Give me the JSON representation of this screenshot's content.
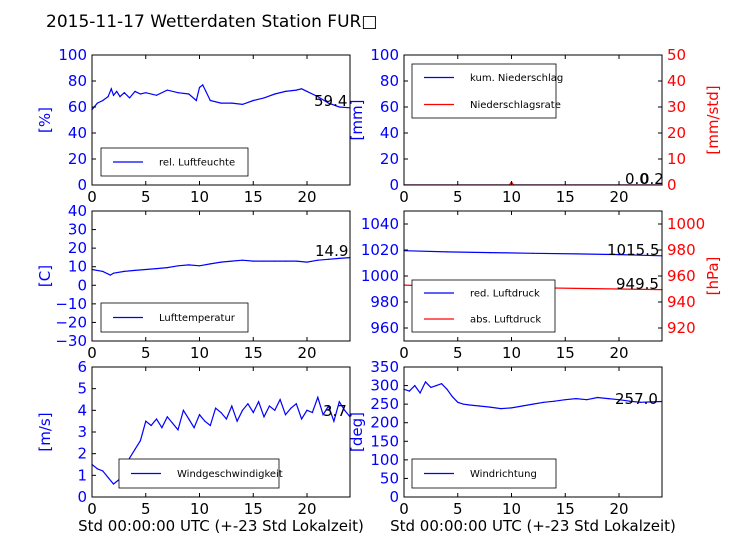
{
  "title": "2015-11-17 Wetterdaten Station FUR□",
  "xlabel": "Std 00:00:00 UTC (+-23 Std Lokalzeit)",
  "colors": {
    "left_axis": "#0000ff",
    "right_axis": "#ff0000",
    "series_blue": "#0000ff",
    "series_red": "#ff0000",
    "wind_faded": "#8080ff"
  },
  "chart_data": [
    {
      "type": "line",
      "id": "humidity",
      "ylabel": "[%]",
      "xlim": [
        0,
        24
      ],
      "ylim": [
        0,
        100
      ],
      "xticks": [
        0,
        5,
        10,
        15,
        20
      ],
      "yticks": [
        0,
        20,
        40,
        60,
        80,
        100
      ],
      "legend": "bottom-left",
      "annotation": "59.4",
      "series": [
        {
          "name": "rel. Luftfeuchte",
          "color": "#0000ff",
          "x": [
            0,
            0.5,
            1,
            1.5,
            1.8,
            2,
            2.3,
            2.6,
            3,
            3.5,
            4,
            4.5,
            5,
            6,
            7,
            8,
            9,
            9.7,
            10,
            10.3,
            10.6,
            11,
            12,
            13,
            14,
            15,
            16,
            17,
            18,
            19,
            19.5,
            20,
            21,
            22,
            23,
            24
          ],
          "y": [
            58,
            63,
            65,
            68,
            74,
            69,
            72,
            68,
            71,
            67,
            72,
            70,
            71,
            69,
            73,
            71,
            70,
            65,
            75,
            77,
            72,
            65,
            63,
            63,
            62,
            65,
            67,
            70,
            72,
            73,
            74,
            72,
            68,
            63,
            60,
            59.4
          ]
        }
      ]
    },
    {
      "type": "line",
      "id": "precipitation",
      "ylabel": "[mm]",
      "ylabel_right": "[mm/std]",
      "xlim": [
        0,
        24
      ],
      "ylim": [
        0,
        100
      ],
      "ylim_right": [
        0,
        50
      ],
      "xticks": [
        0,
        5,
        10,
        15,
        20
      ],
      "yticks": [
        0,
        20,
        40,
        60,
        80,
        100
      ],
      "yticks_right": [
        0,
        10,
        20,
        30,
        40,
        50
      ],
      "legend": "top-left",
      "annotations": [
        "0.0",
        "0.2"
      ],
      "series": [
        {
          "name": "kum. Niederschlag",
          "color": "#0000ff",
          "axis": "left",
          "x": [
            0,
            24
          ],
          "y": [
            0,
            0
          ]
        },
        {
          "name": "Niederschlagsrate",
          "color": "#ff0000",
          "axis": "right",
          "x": [
            0,
            9.8,
            10,
            10.2,
            24
          ],
          "y": [
            0,
            0,
            1.2,
            0,
            0
          ]
        }
      ]
    },
    {
      "type": "line",
      "id": "temperature",
      "ylabel": "[C]",
      "xlim": [
        0,
        24
      ],
      "ylim": [
        -30,
        40
      ],
      "xticks": [
        0,
        5,
        10,
        15,
        20
      ],
      "yticks": [
        -30,
        -20,
        -10,
        0,
        10,
        20,
        30,
        40
      ],
      "legend": "bottom-left",
      "annotation": "14.9",
      "series": [
        {
          "name": "Lufttemperatur",
          "color": "#0000ff",
          "x": [
            0,
            1,
            1.7,
            2,
            3,
            4,
            5,
            6,
            7,
            8,
            9,
            10,
            11,
            12,
            13,
            14,
            15,
            16,
            17,
            18,
            19,
            20,
            21,
            22,
            23,
            24
          ],
          "y": [
            8.5,
            7.5,
            5.5,
            6.5,
            7.5,
            8,
            8.5,
            9,
            9.5,
            10.5,
            11,
            10.5,
            11.5,
            12.5,
            13,
            13.5,
            13,
            13,
            13,
            13,
            13,
            12.5,
            13.5,
            14,
            14.5,
            14.9
          ]
        }
      ]
    },
    {
      "type": "line",
      "id": "pressure",
      "ylabel_right": "[hPa]",
      "xlim": [
        0,
        24
      ],
      "ylim": [
        950,
        1050
      ],
      "ylim_right": [
        910,
        1010
      ],
      "xticks": [
        0,
        5,
        10,
        15,
        20
      ],
      "yticks": [
        960,
        980,
        1000,
        1020,
        1040
      ],
      "yticks_right": [
        920,
        940,
        960,
        980,
        1000
      ],
      "legend": "bottom-left",
      "annotations": [
        "1015.5",
        "949.5"
      ],
      "series": [
        {
          "name": "red. Luftdruck",
          "color": "#0000ff",
          "axis": "left",
          "x": [
            0,
            4,
            8,
            12,
            16,
            20,
            24
          ],
          "y": [
            1019.5,
            1018.5,
            1018,
            1017.5,
            1017,
            1016.5,
            1015.5
          ]
        },
        {
          "name": "abs. Luftdruck",
          "color": "#ff0000",
          "axis": "right",
          "x": [
            0,
            4,
            8,
            12,
            16,
            20,
            24
          ],
          "y": [
            953,
            952,
            951.5,
            951,
            950.5,
            950,
            949.5
          ]
        }
      ]
    },
    {
      "type": "line",
      "id": "windspeed",
      "ylabel": "[m/s]",
      "xlim": [
        0,
        24
      ],
      "ylim": [
        0,
        6
      ],
      "xticks": [
        0,
        5,
        10,
        15,
        20
      ],
      "yticks": [
        0,
        1,
        2,
        3,
        4,
        5,
        6
      ],
      "legend": "bottom-center",
      "annotation": "3.7",
      "series": [
        {
          "name": "Windgeschwindigkeit",
          "color": "#0000ff",
          "x": [
            0,
            0.5,
            1,
            1.5,
            2,
            2.5,
            3,
            3.5,
            4,
            4.5,
            5,
            5.5,
            6,
            6.5,
            7,
            7.5,
            8,
            8.5,
            9,
            9.5,
            10,
            10.5,
            11,
            11.5,
            12,
            12.5,
            13,
            13.5,
            14,
            14.5,
            15,
            15.5,
            16,
            16.5,
            17,
            17.5,
            18,
            18.5,
            19,
            19.5,
            20,
            20.5,
            21,
            21.5,
            22,
            22.5,
            23,
            23.5,
            24
          ],
          "y": [
            1.5,
            1.3,
            1.2,
            0.9,
            0.6,
            0.8,
            1.3,
            1.8,
            2.2,
            2.6,
            3.5,
            3.3,
            3.6,
            3.2,
            3.7,
            3.4,
            3.1,
            4.0,
            3.6,
            3.2,
            3.8,
            3.5,
            3.3,
            4.1,
            3.9,
            3.6,
            4.2,
            3.5,
            4.0,
            4.3,
            3.9,
            4.4,
            3.7,
            4.2,
            4.0,
            4.5,
            3.8,
            4.1,
            4.3,
            3.6,
            4.0,
            3.9,
            4.6,
            3.8,
            4.2,
            3.5,
            4.4,
            4.0,
            3.7
          ]
        }
      ]
    },
    {
      "type": "line",
      "id": "winddir",
      "ylabel": "[deg]",
      "xlim": [
        0,
        24
      ],
      "ylim": [
        0,
        350
      ],
      "xticks": [
        0,
        5,
        10,
        15,
        20
      ],
      "yticks": [
        0,
        50,
        100,
        150,
        200,
        250,
        300,
        350
      ],
      "legend": "bottom-left",
      "annotation": "257.0",
      "series": [
        {
          "name": "Windrichtung",
          "color": "#0000ff",
          "x": [
            0,
            0.5,
            1,
            1.5,
            2,
            2.5,
            3,
            3.5,
            4,
            4.5,
            5,
            5.5,
            6,
            7,
            8,
            9,
            10,
            11,
            12,
            13,
            14,
            15,
            16,
            17,
            18,
            19,
            20,
            21,
            22,
            23,
            24
          ],
          "y": [
            290,
            285,
            300,
            280,
            310,
            295,
            300,
            305,
            290,
            270,
            255,
            250,
            248,
            245,
            242,
            238,
            240,
            245,
            250,
            255,
            258,
            262,
            265,
            262,
            268,
            265,
            262,
            258,
            255,
            256,
            257
          ]
        }
      ]
    }
  ]
}
